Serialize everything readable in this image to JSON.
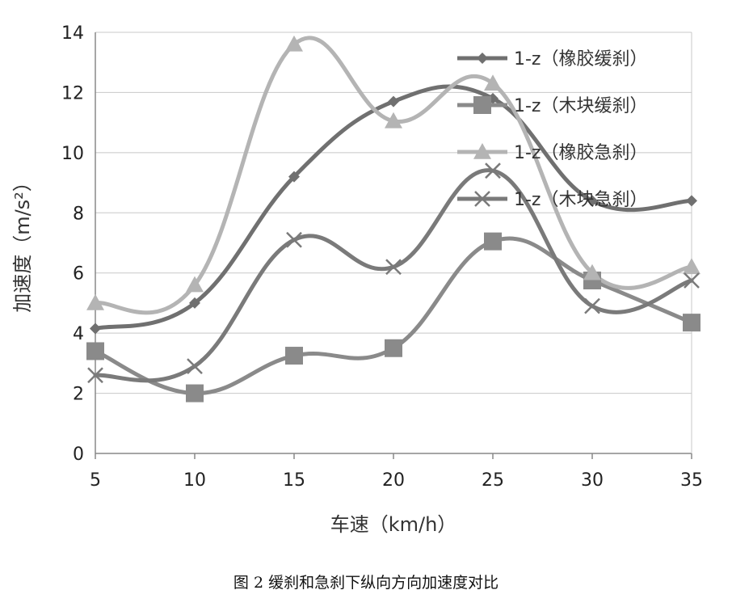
{
  "chart_data": {
    "type": "line",
    "x": [
      5,
      10,
      15,
      20,
      25,
      30,
      35
    ],
    "xlabel": "车速（km/h）",
    "ylabel": "加速度（m/s²）",
    "ylim": [
      0,
      14
    ],
    "xticks": [
      "5",
      "10",
      "15",
      "20",
      "25",
      "30",
      "35"
    ],
    "yticks": [
      "0",
      "2",
      "4",
      "6",
      "8",
      "10",
      "12",
      "14"
    ],
    "grid": "horizontal",
    "legend_position": "top-right",
    "series": [
      {
        "name": "1-z（橡胶缓刹）",
        "marker": "diamond",
        "color": "#707070",
        "values": [
          4.15,
          5.0,
          9.2,
          11.7,
          11.8,
          8.4,
          8.4
        ]
      },
      {
        "name": "1-z（木块缓刹）",
        "marker": "square",
        "color": "#8a8a8a",
        "values": [
          3.4,
          2.0,
          3.25,
          3.5,
          7.05,
          5.75,
          4.35
        ]
      },
      {
        "name": "1-z（橡胶急刹）",
        "marker": "triangle",
        "color": "#b4b4b4",
        "values": [
          5.0,
          5.6,
          13.6,
          11.05,
          12.3,
          6.0,
          6.2
        ]
      },
      {
        "name": "1-z（木块急刹）",
        "marker": "x",
        "color": "#7a7a7a",
        "values": [
          2.6,
          2.9,
          7.1,
          6.2,
          9.4,
          4.9,
          5.75
        ]
      }
    ]
  },
  "caption": "图 2 缓刹和急刹下纵向方向加速度对比"
}
